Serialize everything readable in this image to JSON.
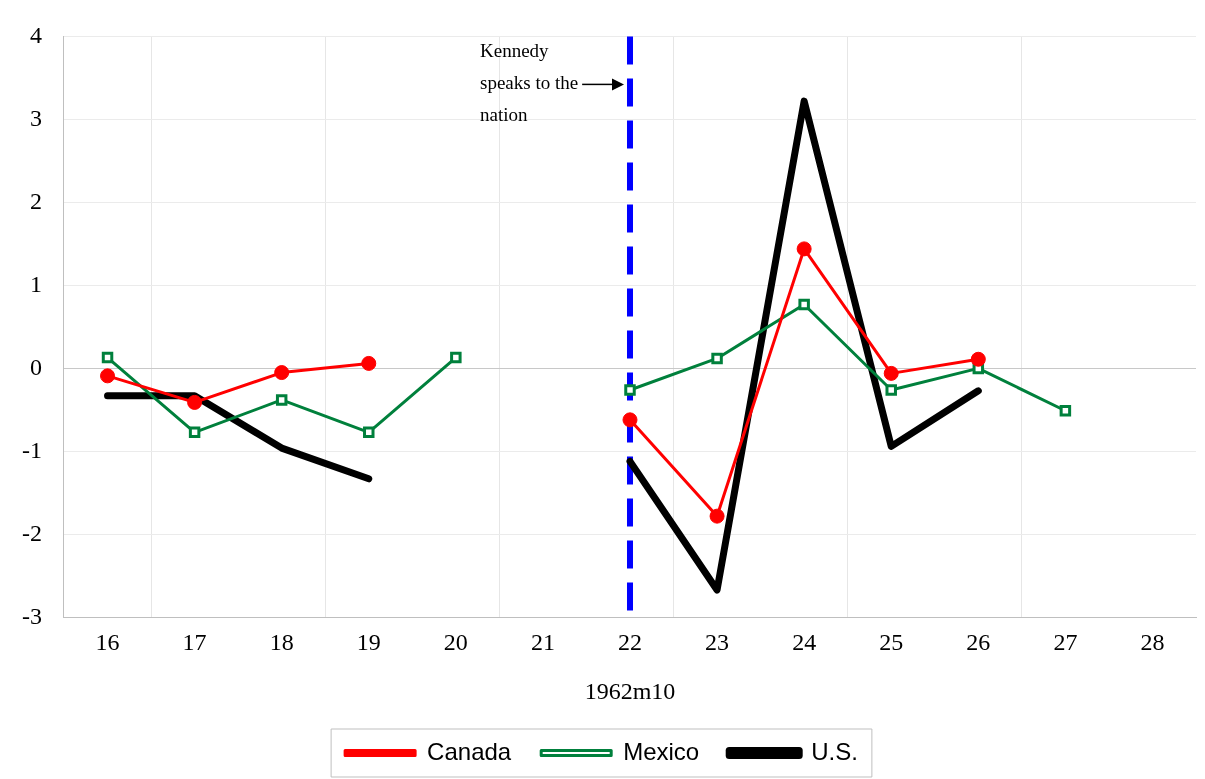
{
  "chart_data": {
    "type": "line",
    "xlabel": "1962m10",
    "categories": [
      "16",
      "17",
      "18",
      "19",
      "20",
      "21",
      "22",
      "23",
      "24",
      "25",
      "26",
      "27",
      "28"
    ],
    "series": [
      {
        "name": "Canada",
        "color": "#ff0000",
        "marker": "circle",
        "values": [
          -0.09,
          -0.41,
          -0.05,
          0.06,
          null,
          null,
          -0.62,
          -1.78,
          1.44,
          -0.06,
          0.11,
          null,
          null
        ]
      },
      {
        "name": "Mexico",
        "color": "#00803c",
        "marker": "square",
        "values": [
          0.13,
          -0.77,
          -0.38,
          -0.77,
          0.13,
          null,
          -0.26,
          0.12,
          0.77,
          -0.26,
          0,
          -0.51,
          null
        ]
      },
      {
        "name": "U.S.",
        "color": "#000000",
        "marker": "none",
        "values": [
          -0.33,
          -0.33,
          -0.96,
          -1.33,
          null,
          null,
          -1.12,
          -2.67,
          3.22,
          -0.94,
          -0.27,
          null,
          null
        ]
      }
    ],
    "ylim": [
      -3,
      4
    ],
    "yticks": [
      -3,
      -2,
      -1,
      0,
      1,
      2,
      3,
      4
    ],
    "grid": true,
    "legend": "bottom",
    "ref_lines": [
      {
        "axis": "x",
        "value": "22",
        "label": "Kennedy speaks to the nation",
        "color": "#0000ff",
        "line_style": "dashed"
      }
    ]
  }
}
